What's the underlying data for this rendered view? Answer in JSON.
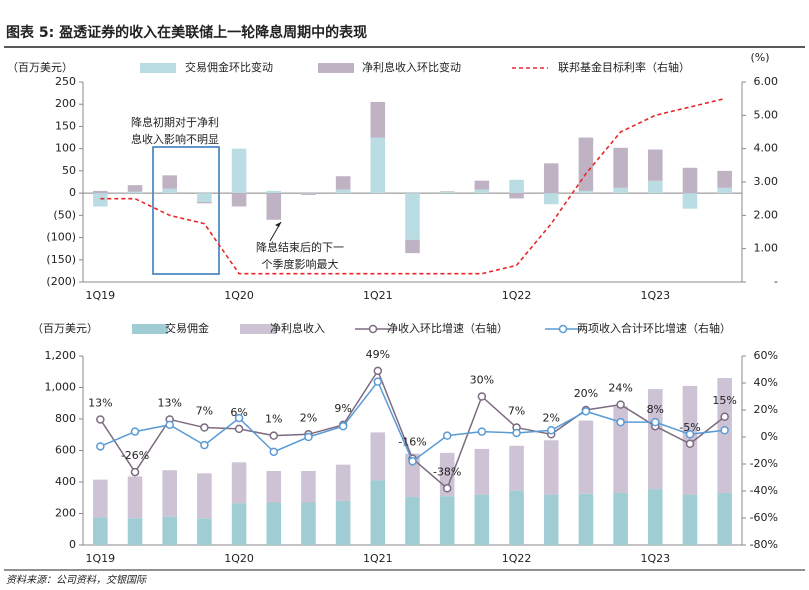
{
  "title": "图表 5: 盈透证券的收入在美联储上一轮降息周期中的表现",
  "source": "资料来源：公司资料，交银国际",
  "chart_data": [
    {
      "type": "bar_line",
      "stacked": true,
      "y_label": "（百万美元）",
      "y2_label": "(%)",
      "categories": [
        "1Q19",
        null,
        null,
        null,
        "1Q20",
        null,
        null,
        null,
        "1Q21",
        null,
        null,
        null,
        "1Q22",
        null,
        null,
        null,
        "1Q23",
        null,
        null
      ],
      "ylim": [
        -200,
        250
      ],
      "yticks": [
        {
          "value": -200,
          "label": "(200)"
        },
        {
          "value": -150,
          "label": "(150)"
        },
        {
          "value": -100,
          "label": "(100)"
        },
        {
          "value": -50,
          "label": "(50)"
        },
        0,
        50,
        100,
        150,
        200,
        250
      ],
      "negative_tick_color": "#e8262a",
      "y2lim": [
        0,
        6
      ],
      "y2ticks": [
        {
          "value": 0,
          "label": "-"
        },
        {
          "value": 1,
          "label": "1.00"
        },
        {
          "value": 2,
          "label": "2.00"
        },
        {
          "value": 3,
          "label": "3.00"
        },
        {
          "value": 4,
          "label": "4.00"
        },
        {
          "value": 5,
          "label": "5.00"
        },
        {
          "value": 6,
          "label": "6.00"
        }
      ],
      "series": [
        {
          "name": "交易佣金环比变动",
          "type": "bar",
          "color": "#b9dde3",
          "values": [
            -30,
            3,
            10,
            -20,
            100,
            5,
            -1,
            8,
            125,
            -105,
            2,
            8,
            30,
            -25,
            5,
            12,
            28,
            -35,
            12
          ]
        },
        {
          "name": "净利息收入环比变动",
          "type": "bar",
          "color": "#bfb3c3",
          "values": [
            5,
            15,
            30,
            -3,
            -30,
            -60,
            -3,
            30,
            80,
            -30,
            2,
            20,
            -12,
            67,
            120,
            90,
            70,
            57,
            38
          ]
        },
        {
          "name": "联邦基金目标利率（右轴）",
          "type": "line",
          "axis": "y2",
          "color": "#e8262a",
          "dash": true,
          "values": [
            2.5,
            2.5,
            2.0,
            1.75,
            0.25,
            0.25,
            0.25,
            0.25,
            0.25,
            0.25,
            0.25,
            0.25,
            0.5,
            1.75,
            3.25,
            4.5,
            5.0,
            5.25,
            5.5
          ]
        }
      ],
      "annotations": [
        [
          "降息初期对于净利",
          "息收入影响不明显"
        ],
        [
          "降息结束后的下一",
          "个季度影响最大"
        ]
      ]
    },
    {
      "type": "bar_line",
      "stacked": true,
      "y_label": "（百万美元）",
      "categories": [
        "1Q19",
        null,
        null,
        null,
        "1Q20",
        null,
        null,
        null,
        "1Q21",
        null,
        null,
        null,
        "1Q22",
        null,
        null,
        null,
        "1Q23",
        null,
        null
      ],
      "ylim": [
        0,
        1200
      ],
      "yticks": [
        0,
        200,
        400,
        600,
        800,
        {
          "value": 1000,
          "label": "1,000"
        },
        {
          "value": 1200,
          "label": "1,200"
        }
      ],
      "y2lim": [
        -80,
        60
      ],
      "y2ticks": [
        {
          "value": -80,
          "label": "-80%"
        },
        {
          "value": -60,
          "label": "-60%"
        },
        {
          "value": -40,
          "label": "-40%"
        },
        {
          "value": -20,
          "label": "-20%"
        },
        {
          "value": 0,
          "label": "0%"
        },
        {
          "value": 20,
          "label": "20%"
        },
        {
          "value": 40,
          "label": "40%"
        },
        {
          "value": 60,
          "label": "60%"
        }
      ],
      "series": [
        {
          "name": "交易佣金",
          "type": "bar",
          "color": "#9fcdd3",
          "values": [
            175,
            170,
            180,
            170,
            265,
            270,
            270,
            280,
            410,
            305,
            310,
            320,
            345,
            320,
            325,
            330,
            355,
            320,
            330
          ]
        },
        {
          "name": "净利息收入",
          "type": "bar",
          "color": "#cdc3d4",
          "values": [
            240,
            265,
            295,
            285,
            260,
            200,
            200,
            230,
            305,
            275,
            275,
            290,
            285,
            345,
            465,
            550,
            635,
            690,
            730
          ]
        },
        {
          "name": "净收入环比增速（右轴）",
          "type": "line",
          "axis": "y2",
          "color": "#7d6b80",
          "markers": true,
          "values": [
            13,
            -26,
            13,
            7,
            6,
            1,
            2,
            9,
            49,
            -16,
            -38,
            30,
            7,
            2,
            20,
            24,
            8,
            -5,
            15
          ],
          "value_labels": [
            "13%",
            "-26%",
            "13%",
            "7%",
            "6%",
            "1%",
            "2%",
            "9%",
            "49%",
            "-16%",
            "-38%",
            "30%",
            "7%",
            "2%",
            "20%",
            "24%",
            "8%",
            "-5%",
            "15%"
          ]
        },
        {
          "name": "两项收入合计环比增速（右轴）",
          "type": "line",
          "axis": "y2",
          "color": "#5b9bd5",
          "markers": true,
          "values": [
            -7,
            4,
            9,
            -6,
            14,
            -11,
            0,
            8,
            41,
            -18,
            1,
            4,
            3,
            5,
            19,
            11,
            11,
            2,
            5
          ]
        }
      ]
    }
  ]
}
